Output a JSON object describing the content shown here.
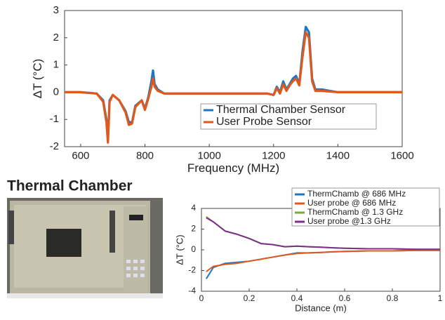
{
  "label": "Thermal Chamber",
  "chart_data": [
    {
      "type": "line",
      "xlabel": "Frequency (MHz)",
      "ylabel": "ΔT (°C)",
      "xlim": [
        550,
        1600
      ],
      "ylim": [
        -2,
        3
      ],
      "xticks": [
        600,
        800,
        1000,
        1200,
        1400,
        1600
      ],
      "yticks": [
        -2,
        -1,
        0,
        1,
        2,
        3
      ],
      "x": [
        550,
        600,
        650,
        670,
        680,
        685,
        690,
        700,
        720,
        740,
        750,
        760,
        770,
        790,
        800,
        810,
        820,
        825,
        830,
        840,
        860,
        900,
        1000,
        1100,
        1180,
        1200,
        1210,
        1220,
        1230,
        1240,
        1250,
        1260,
        1270,
        1280,
        1290,
        1300,
        1310,
        1320,
        1330,
        1350,
        1400,
        1500,
        1600
      ],
      "series": [
        {
          "name": "Thermal Chamber Sensor",
          "color": "#1f77c4",
          "values": [
            0,
            0,
            -0.05,
            -0.3,
            -1.0,
            -1.7,
            -0.3,
            -0.1,
            -0.3,
            -0.7,
            -1.1,
            -1.1,
            -0.5,
            -0.3,
            -0.6,
            -0.2,
            0.4,
            0.8,
            0.3,
            0.1,
            -0.05,
            -0.05,
            -0.05,
            -0.05,
            -0.05,
            -0.1,
            0.2,
            0,
            0.4,
            0.1,
            0.3,
            0.5,
            0.6,
            0.3,
            1.5,
            2.4,
            2.2,
            0.5,
            0.1,
            0.1,
            0,
            0,
            0
          ]
        },
        {
          "name": "User Probe Sensor",
          "color": "#e0581c",
          "values": [
            0,
            0,
            -0.05,
            -0.35,
            -1.1,
            -1.85,
            -0.35,
            -0.1,
            -0.3,
            -0.75,
            -1.2,
            -1.15,
            -0.55,
            -0.3,
            -0.65,
            -0.25,
            0.2,
            0.5,
            0.2,
            0.05,
            -0.05,
            -0.05,
            -0.05,
            -0.05,
            -0.05,
            -0.1,
            0.15,
            -0.05,
            0.3,
            0.05,
            0.25,
            0.4,
            0.5,
            0.25,
            1.3,
            2.2,
            2.0,
            0.4,
            0.05,
            0.05,
            0,
            0,
            0
          ]
        }
      ]
    },
    {
      "type": "line",
      "xlabel": "Distance (m)",
      "ylabel": "ΔT (°C)",
      "xlim": [
        0,
        1
      ],
      "ylim": [
        -4,
        4
      ],
      "xticks": [
        0,
        0.2,
        0.4,
        0.6,
        0.8,
        1
      ],
      "yticks": [
        -4,
        -2,
        0,
        2,
        4
      ],
      "x": [
        0.02,
        0.05,
        0.1,
        0.15,
        0.2,
        0.25,
        0.3,
        0.35,
        0.4,
        0.45,
        0.5,
        0.55,
        0.6,
        0.7,
        0.8,
        0.9,
        1.0
      ],
      "series": [
        {
          "name": "ThermChamb @ 686 MHz",
          "color": "#1f77c4",
          "values": [
            -2.8,
            -1.7,
            -1.3,
            -1.2,
            -1.1,
            -0.9,
            -0.7,
            -0.5,
            -0.3,
            -0.3,
            -0.25,
            -0.2,
            -0.15,
            -0.1,
            -0.1,
            -0.05,
            -0.05
          ]
        },
        {
          "name": "User probe @ 686 MHz",
          "color": "#e0581c",
          "values": [
            -2.1,
            -1.6,
            -1.4,
            -1.3,
            -1.1,
            -0.9,
            -0.7,
            -0.5,
            -0.35,
            -0.3,
            -0.25,
            -0.2,
            -0.15,
            -0.1,
            -0.1,
            -0.05,
            -0.05
          ]
        },
        {
          "name": "ThermChamb @ 1.3 GHz",
          "color": "#77ac30",
          "values": [
            3.2,
            2.7,
            1.8,
            1.5,
            1.1,
            0.6,
            0.5,
            0.3,
            0.35,
            0.3,
            0.25,
            0.2,
            0.15,
            0.1,
            0.1,
            0.05,
            0.05
          ]
        },
        {
          "name": "User probe @1.3 GHz",
          "color": "#7e2f8e",
          "values": [
            3.1,
            2.7,
            1.8,
            1.5,
            1.1,
            0.6,
            0.5,
            0.3,
            0.35,
            0.3,
            0.25,
            0.2,
            0.15,
            0.1,
            0.1,
            0.05,
            0.05
          ]
        }
      ]
    }
  ]
}
